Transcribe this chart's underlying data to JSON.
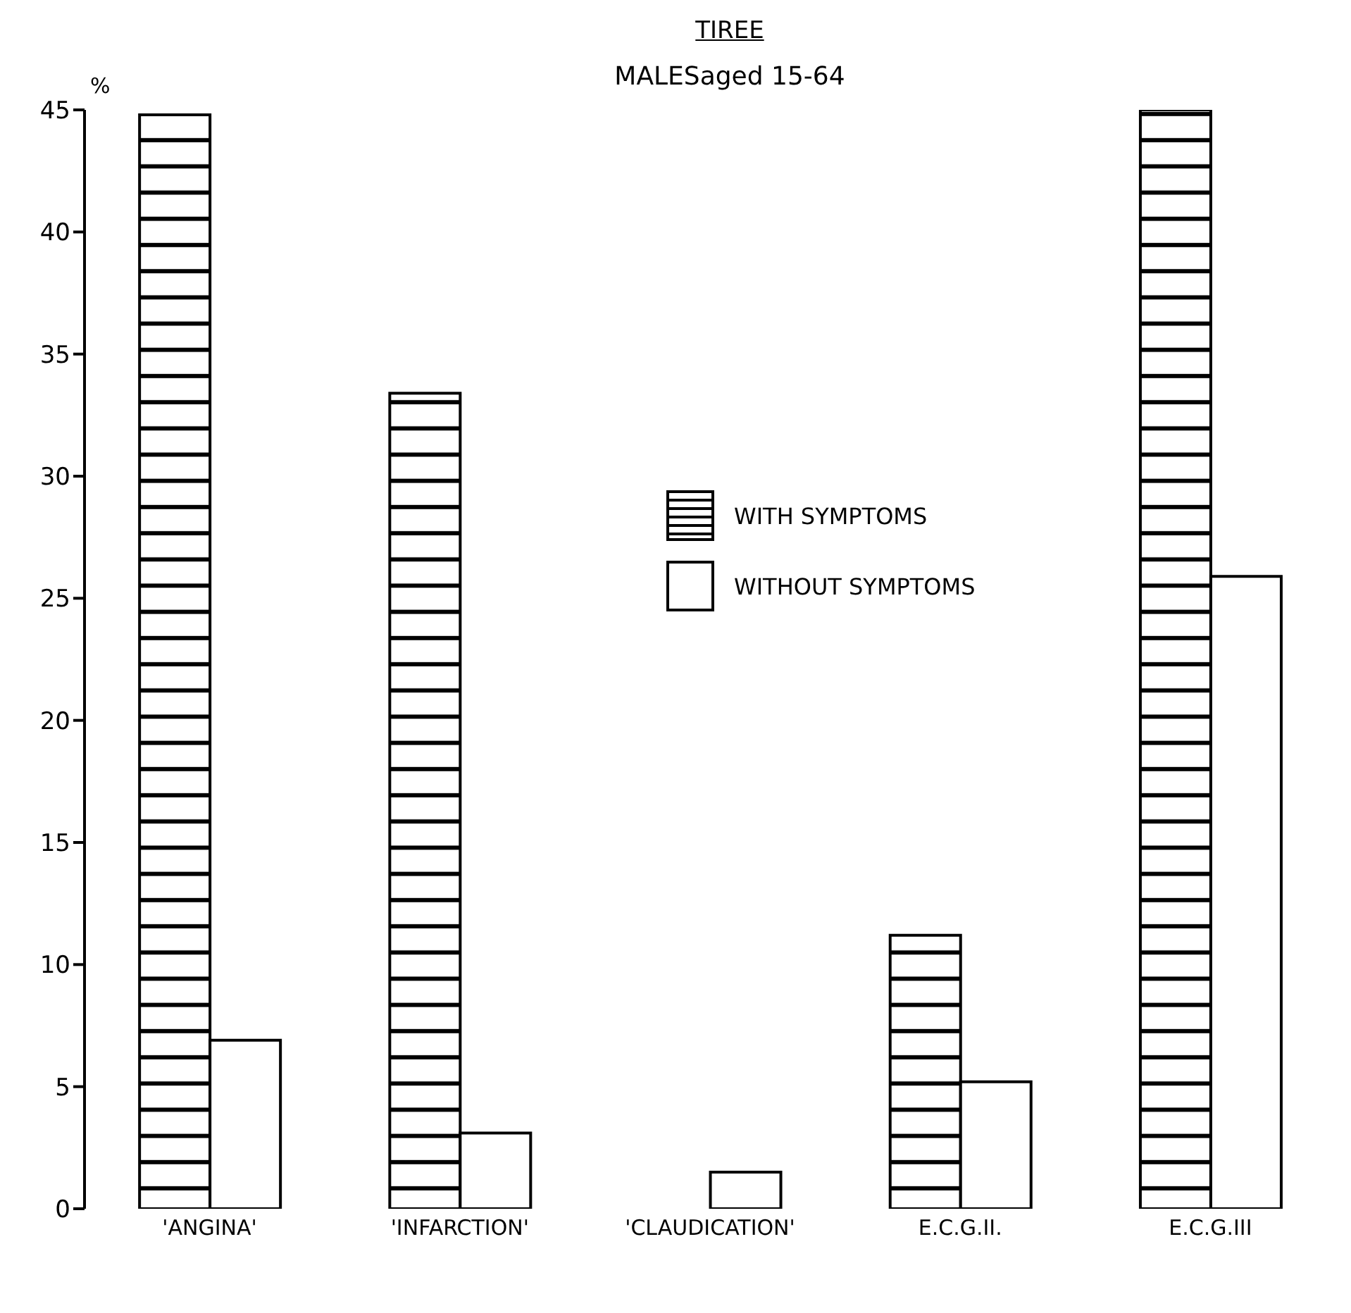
{
  "chart_data": {
    "type": "bar",
    "title": "TIREE",
    "subtitle": "MALESaged 15-64",
    "ylabel": "%",
    "categories": [
      "'ANGINA'",
      "'INFARCTION'",
      "'CLAUDICATION'",
      "E.C.G.II.",
      "E.C.G.III"
    ],
    "series": [
      {
        "name": "WITH SYMPTOMS",
        "color": "#000000",
        "values": [
          44.8,
          33.4,
          0,
          11.2,
          45
        ]
      },
      {
        "name": "WITHOUT SYMPTOMS",
        "color": "#ffffff",
        "values": [
          6.9,
          3.1,
          1.5,
          5.2,
          25.9
        ]
      }
    ],
    "ylim": [
      0,
      45
    ],
    "yticks": [
      0,
      5,
      10,
      15,
      20,
      25,
      30,
      35,
      40,
      45
    ],
    "grid": false,
    "legend": "center"
  }
}
